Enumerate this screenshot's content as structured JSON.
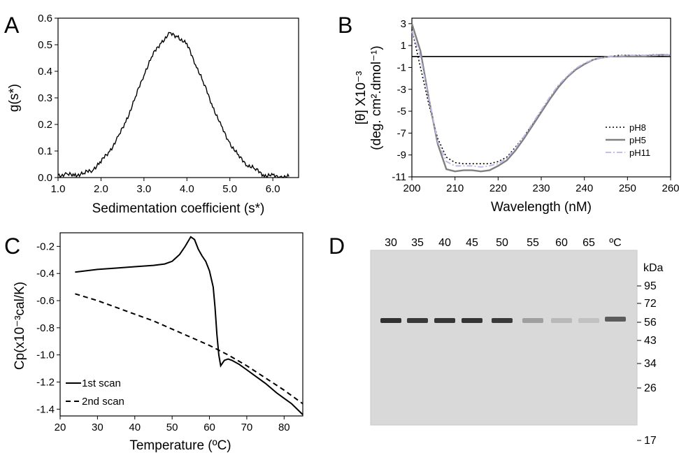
{
  "panels": {
    "A": "A",
    "B": "B",
    "C": "C",
    "D": "D"
  },
  "chart_data": [
    {
      "id": "A",
      "type": "line",
      "xlabel": "Sedimentation coefficient (s*)",
      "ylabel": "g(s*)",
      "xlim": [
        1.0,
        6.6
      ],
      "ylim": [
        0.0,
        0.6
      ],
      "xticks": [
        "1.0",
        "2.0",
        "3.0",
        "4.0",
        "5.0",
        "6.0"
      ],
      "yticks": [
        "0.0",
        "0.1",
        "0.2",
        "0.3",
        "0.4",
        "0.5",
        "0.6"
      ],
      "grid": false,
      "series": [
        {
          "x": [
            1.0,
            1.2,
            1.4,
            1.6,
            1.8,
            2.0,
            2.2,
            2.4,
            2.6,
            2.8,
            3.0,
            3.2,
            3.4,
            3.6,
            3.8,
            4.0,
            4.2,
            4.4,
            4.6,
            4.8,
            5.0,
            5.2,
            5.4,
            5.6,
            5.8,
            6.0,
            6.2,
            6.4
          ],
          "y": [
            0.01,
            0.01,
            0.01,
            0.015,
            0.03,
            0.06,
            0.1,
            0.15,
            0.22,
            0.3,
            0.39,
            0.46,
            0.51,
            0.54,
            0.53,
            0.5,
            0.43,
            0.35,
            0.27,
            0.19,
            0.13,
            0.08,
            0.05,
            0.03,
            0.01,
            0.005,
            0.003,
            0.002
          ],
          "color": "#000000"
        }
      ]
    },
    {
      "id": "B",
      "type": "line",
      "xlabel": "Wavelength (nM)",
      "ylabel": "[θ] X10⁻³",
      "ylabel2": "(deg. cm².dmol⁻¹)",
      "xlim": [
        200,
        260
      ],
      "ylim": [
        -11,
        3.5
      ],
      "xticks": [
        "200",
        "210",
        "220",
        "230",
        "240",
        "250",
        "260"
      ],
      "yticks": [
        "-11",
        "-9",
        "-7",
        "-5",
        "-3",
        "-1",
        "1",
        "3"
      ],
      "legend_position": "bottom-right",
      "grid": false,
      "x": [
        200,
        202,
        204,
        206,
        208,
        210,
        212,
        214,
        216,
        218,
        220,
        222,
        224,
        226,
        228,
        230,
        232,
        234,
        236,
        238,
        240,
        242,
        244,
        246,
        248,
        250,
        252,
        254,
        256,
        258,
        260
      ],
      "series": [
        {
          "name": "pH8",
          "y": [
            2.5,
            -1.0,
            -4.5,
            -7.5,
            -9.2,
            -9.7,
            -9.8,
            -9.8,
            -9.8,
            -9.8,
            -9.6,
            -9.2,
            -8.3,
            -7.3,
            -6.2,
            -5.0,
            -3.8,
            -2.7,
            -1.9,
            -1.2,
            -0.7,
            -0.3,
            -0.1,
            0.0,
            0.1,
            0.1,
            0.1,
            0.1,
            0.15,
            0.15,
            0.15
          ],
          "color": "#000000",
          "dash": "dot"
        },
        {
          "name": "pH5",
          "y": [
            3.0,
            0.5,
            -4.0,
            -8.0,
            -10.3,
            -10.5,
            -10.4,
            -10.4,
            -10.5,
            -10.4,
            -10.0,
            -9.5,
            -8.6,
            -7.5,
            -6.3,
            -5.1,
            -3.9,
            -2.8,
            -1.9,
            -1.2,
            -0.7,
            -0.3,
            -0.1,
            0.0,
            0.0,
            0.05,
            0.05,
            0.05,
            0.1,
            0.15,
            0.1
          ],
          "color": "#808080",
          "dash": "solid"
        },
        {
          "name": "pH11",
          "y": [
            2.3,
            0.0,
            -4.0,
            -7.8,
            -9.6,
            -10.0,
            -10.0,
            -10.0,
            -10.1,
            -10.0,
            -9.8,
            -9.3,
            -8.4,
            -7.3,
            -6.1,
            -4.9,
            -3.7,
            -2.6,
            -1.8,
            -1.1,
            -0.6,
            -0.3,
            -0.1,
            0.0,
            0.05,
            0.1,
            0.1,
            0.1,
            0.1,
            0.1,
            0.1
          ],
          "color": "#b8b8e8",
          "dash": "dashdot"
        }
      ]
    },
    {
      "id": "C",
      "type": "line",
      "xlabel": "Temperature (ºC)",
      "ylabel": "Cp(x10⁻³cal/K)",
      "xlim": [
        20,
        85
      ],
      "ylim": [
        -1.45,
        -0.1
      ],
      "xticks": [
        "20",
        "30",
        "40",
        "50",
        "60",
        "70",
        "80"
      ],
      "yticks": [
        "-1.4",
        "-1.2",
        "-1.0",
        "-0.8",
        "-0.6",
        "-0.4",
        "-0.2"
      ],
      "legend_position": "bottom-left",
      "grid": false,
      "series": [
        {
          "name": "1st scan",
          "x": [
            24,
            30,
            35,
            40,
            45,
            48,
            50,
            52,
            53.5,
            55,
            56,
            57,
            58,
            59,
            60,
            61,
            61.5,
            62,
            62.5,
            63,
            63.5,
            64,
            65,
            66,
            68,
            70,
            72,
            75,
            78,
            80,
            82,
            85
          ],
          "y": [
            -0.39,
            -0.37,
            -0.36,
            -0.35,
            -0.34,
            -0.33,
            -0.31,
            -0.26,
            -0.2,
            -0.13,
            -0.15,
            -0.22,
            -0.27,
            -0.31,
            -0.38,
            -0.5,
            -0.65,
            -0.85,
            -1.0,
            -1.08,
            -1.06,
            -1.04,
            -1.03,
            -1.04,
            -1.07,
            -1.11,
            -1.15,
            -1.21,
            -1.28,
            -1.32,
            -1.36,
            -1.44
          ],
          "color": "#000000",
          "dash": "solid"
        },
        {
          "name": "2nd scan",
          "x": [
            24,
            30,
            35,
            40,
            45,
            50,
            55,
            60,
            65,
            70,
            75,
            80,
            85
          ],
          "y": [
            -0.55,
            -0.6,
            -0.65,
            -0.7,
            -0.75,
            -0.81,
            -0.87,
            -0.93,
            -1.0,
            -1.08,
            -1.17,
            -1.26,
            -1.36
          ],
          "color": "#000000",
          "dash": "dash"
        }
      ]
    },
    {
      "id": "D",
      "type": "gel",
      "lane_labels": [
        "30",
        "35",
        "40",
        "45",
        "50",
        "55",
        "60",
        "65",
        "ºC"
      ],
      "unit_label": "kDa",
      "mw_markers": [
        "95",
        "72",
        "56",
        "43",
        "34",
        "26",
        "17"
      ],
      "band_intensity": [
        0.95,
        0.9,
        0.92,
        0.93,
        0.9,
        0.3,
        0.15,
        0.1,
        0.7
      ]
    }
  ]
}
